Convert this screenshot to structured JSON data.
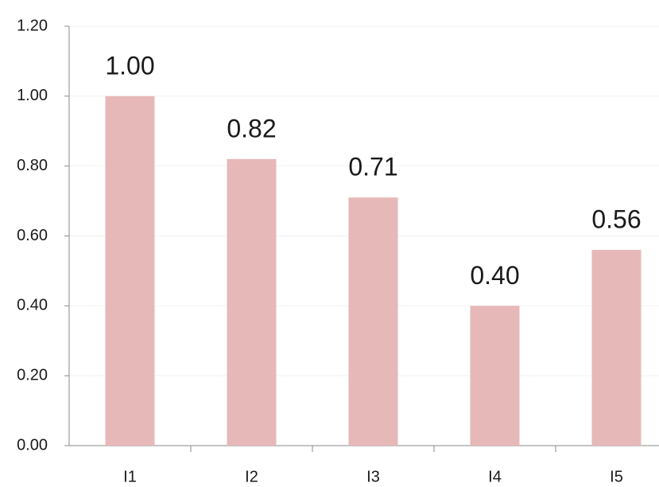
{
  "chart_data": {
    "type": "bar",
    "categories": [
      "I1",
      "I2",
      "I3",
      "I4",
      "I5"
    ],
    "values": [
      1.0,
      0.82,
      0.71,
      0.4,
      0.56
    ],
    "value_labels": [
      "1.00",
      "0.82",
      "0.71",
      "0.40",
      "0.56"
    ],
    "color": "#e6b8b7",
    "ylim": [
      0,
      1.2
    ],
    "yticks": [
      {
        "value": 0,
        "label": "0.00"
      },
      {
        "value": 0.2,
        "label": "0.20"
      },
      {
        "value": 0.4,
        "label": "0.40"
      },
      {
        "value": 0.6,
        "label": "0.60"
      },
      {
        "value": 0.8,
        "label": "0.80"
      },
      {
        "value": 1.0,
        "label": "1.00"
      },
      {
        "value": 1.2,
        "label": "1.20"
      }
    ],
    "grid": true
  }
}
